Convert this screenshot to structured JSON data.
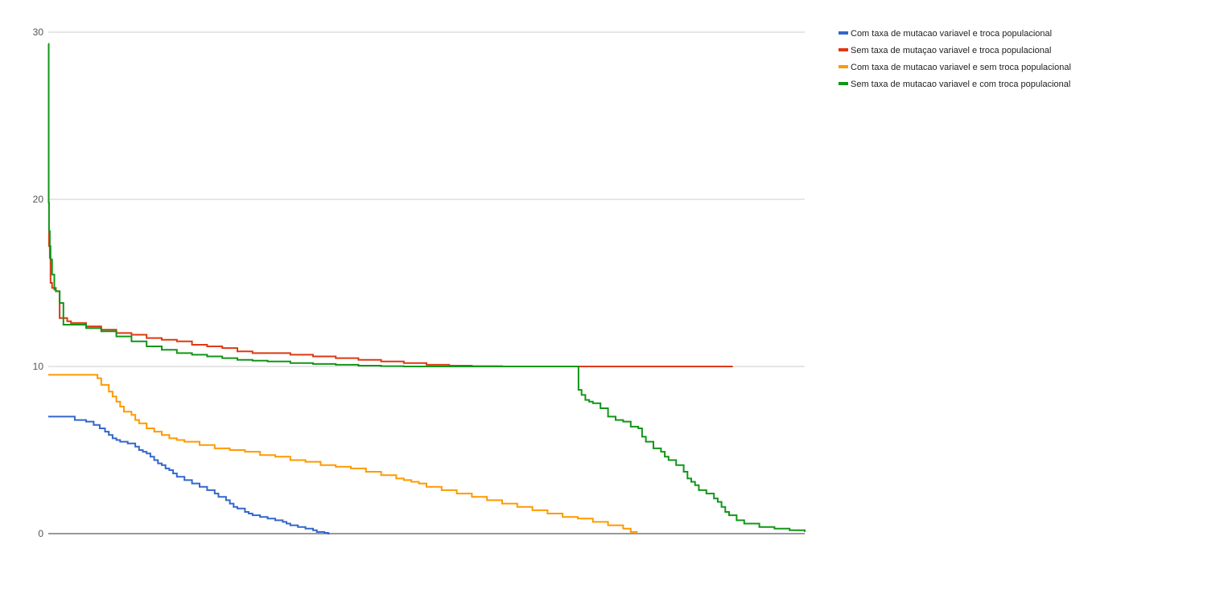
{
  "chart_data": {
    "type": "line",
    "title": "",
    "xlabel": "",
    "ylabel": "",
    "ylim": [
      0,
      30
    ],
    "xlim": [
      0,
      1000
    ],
    "y_ticks": [
      "0",
      "10",
      "20",
      "30"
    ],
    "grid": true,
    "legend_position": "right",
    "series": [
      {
        "name": "Com taxa de mutacao variavel e troca populacional",
        "color": "#3366cc",
        "x": [
          0,
          28,
          35,
          50,
          60,
          68,
          75,
          80,
          85,
          90,
          95,
          105,
          115,
          120,
          125,
          130,
          135,
          140,
          145,
          150,
          155,
          160,
          165,
          170,
          180,
          190,
          200,
          210,
          220,
          225,
          235,
          240,
          245,
          250,
          260,
          265,
          270,
          280,
          290,
          300,
          310,
          315,
          320,
          330,
          340,
          345,
          350,
          355,
          360,
          365,
          370,
          372
        ],
        "y": [
          7.0,
          7.0,
          6.8,
          6.7,
          6.5,
          6.3,
          6.1,
          5.9,
          5.7,
          5.6,
          5.5,
          5.4,
          5.2,
          5.0,
          4.9,
          4.8,
          4.6,
          4.4,
          4.2,
          4.1,
          3.9,
          3.8,
          3.6,
          3.4,
          3.2,
          3.0,
          2.8,
          2.6,
          2.4,
          2.2,
          2.0,
          1.8,
          1.6,
          1.5,
          1.3,
          1.2,
          1.1,
          1.0,
          0.9,
          0.8,
          0.7,
          0.6,
          0.5,
          0.4,
          0.3,
          0.3,
          0.2,
          0.1,
          0.1,
          0.05,
          0.0,
          0.0
        ]
      },
      {
        "name": "Sem taxa de mutaçao variavel e troca populacional",
        "color": "#dc3912",
        "x": [
          0,
          1,
          2,
          3,
          5,
          10,
          15,
          20,
          25,
          30,
          50,
          70,
          90,
          110,
          130,
          150,
          170,
          190,
          210,
          230,
          250,
          270,
          290,
          320,
          350,
          380,
          410,
          440,
          470,
          500,
          530,
          560,
          600,
          650,
          700,
          750,
          800,
          850,
          905
        ],
        "y": [
          18.0,
          17.2,
          16.5,
          15.0,
          14.7,
          14.5,
          12.9,
          12.9,
          12.7,
          12.6,
          12.4,
          12.2,
          12.0,
          11.9,
          11.7,
          11.6,
          11.5,
          11.3,
          11.2,
          11.1,
          10.9,
          10.8,
          10.8,
          10.7,
          10.6,
          10.5,
          10.4,
          10.3,
          10.2,
          10.1,
          10.05,
          10.02,
          10.0,
          10.0,
          10.0,
          10.0,
          10.0,
          10.0,
          10.0
        ]
      },
      {
        "name": "Com taxa de mutacao variavel e sem troca populacional",
        "color": "#ff9900",
        "x": [
          0,
          60,
          65,
          70,
          80,
          85,
          90,
          95,
          100,
          110,
          115,
          120,
          130,
          140,
          150,
          160,
          170,
          180,
          200,
          220,
          240,
          260,
          280,
          300,
          320,
          340,
          360,
          380,
          400,
          420,
          440,
          460,
          470,
          480,
          490,
          500,
          520,
          540,
          560,
          580,
          600,
          620,
          640,
          660,
          680,
          700,
          720,
          740,
          760,
          770,
          778
        ],
        "y": [
          9.5,
          9.5,
          9.3,
          8.9,
          8.5,
          8.2,
          7.9,
          7.6,
          7.3,
          7.1,
          6.8,
          6.6,
          6.3,
          6.1,
          5.9,
          5.7,
          5.6,
          5.5,
          5.3,
          5.1,
          5.0,
          4.9,
          4.7,
          4.6,
          4.4,
          4.3,
          4.1,
          4.0,
          3.9,
          3.7,
          3.5,
          3.3,
          3.2,
          3.1,
          3.0,
          2.8,
          2.6,
          2.4,
          2.2,
          2.0,
          1.8,
          1.6,
          1.4,
          1.2,
          1.0,
          0.9,
          0.7,
          0.5,
          0.3,
          0.1,
          0.0
        ]
      },
      {
        "name": "Sem taxa de mutacao variavel e com troca populacional",
        "color": "#109618",
        "x": [
          0,
          0.5,
          1,
          2,
          3,
          5,
          8,
          10,
          15,
          20,
          25,
          35,
          50,
          70,
          90,
          110,
          130,
          150,
          170,
          190,
          210,
          230,
          250,
          270,
          290,
          320,
          350,
          380,
          410,
          440,
          470,
          500,
          550,
          600,
          650,
          700,
          701,
          705,
          710,
          715,
          720,
          730,
          740,
          750,
          760,
          770,
          780,
          785,
          790,
          800,
          810,
          815,
          820,
          830,
          840,
          845,
          850,
          855,
          860,
          870,
          880,
          885,
          890,
          895,
          900,
          910,
          920,
          940,
          960,
          980,
          1000
        ],
        "y": [
          29.3,
          19.8,
          18.1,
          17.2,
          16.4,
          15.5,
          14.6,
          14.5,
          13.8,
          12.5,
          12.5,
          12.5,
          12.3,
          12.1,
          11.8,
          11.5,
          11.2,
          11.0,
          10.8,
          10.7,
          10.6,
          10.5,
          10.4,
          10.35,
          10.3,
          10.2,
          10.15,
          10.1,
          10.05,
          10.02,
          10.0,
          10.0,
          10.0,
          10.0,
          10.0,
          10.0,
          8.6,
          8.3,
          8.0,
          7.9,
          7.8,
          7.5,
          7.0,
          6.8,
          6.7,
          6.4,
          6.3,
          5.8,
          5.5,
          5.1,
          4.9,
          4.6,
          4.4,
          4.1,
          3.7,
          3.3,
          3.1,
          2.9,
          2.6,
          2.4,
          2.1,
          1.9,
          1.6,
          1.3,
          1.1,
          0.8,
          0.6,
          0.4,
          0.3,
          0.2,
          0.1
        ]
      }
    ]
  }
}
